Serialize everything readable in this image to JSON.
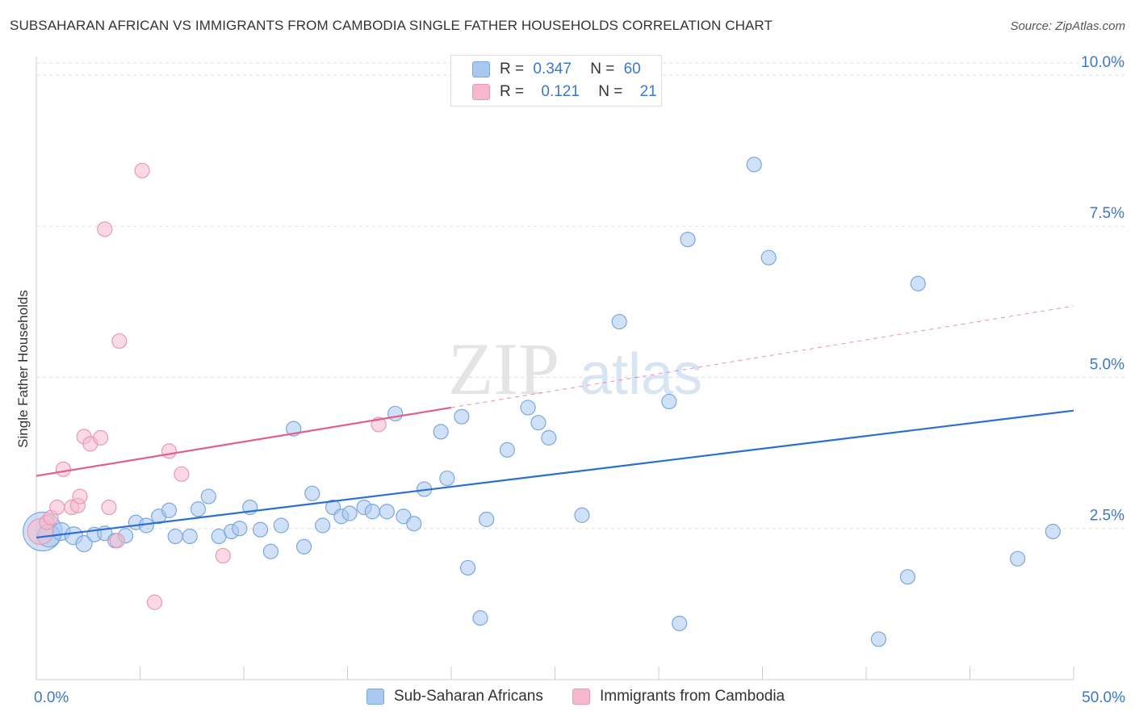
{
  "title": "SUBSAHARAN AFRICAN VS IMMIGRANTS FROM CAMBODIA SINGLE FATHER HOUSEHOLDS CORRELATION CHART",
  "source": "Source: ZipAtlas.com",
  "watermark": {
    "zip": "ZIP",
    "atlas": "atlas"
  },
  "legend": {
    "rows": [
      {
        "r_label": "R =",
        "r_value": "0.347",
        "n_label": "N =",
        "n_value": "60",
        "color": "#a9c8f0"
      },
      {
        "r_label": "R =",
        "r_value": "0.121",
        "n_label": "N =",
        "n_value": "21",
        "color": "#f6b9cc"
      }
    ]
  },
  "bottom_legend": [
    {
      "label": "Sub-Saharan Africans",
      "color": "#a9c8f0"
    },
    {
      "label": "Immigrants from Cambodia",
      "color": "#f6b9cc"
    }
  ],
  "chart_data": {
    "type": "scatter",
    "title": "SUBSAHARAN AFRICAN VS IMMIGRANTS FROM CAMBODIA SINGLE FATHER HOUSEHOLDS CORRELATION CHART",
    "xlabel": "",
    "ylabel": "Single Father Households",
    "xlim": [
      0,
      50
    ],
    "ylim": [
      0,
      10.2
    ],
    "x_tick_labels": [
      {
        "value": 0,
        "label": "0.0%"
      },
      {
        "value": 50,
        "label": "50.0%"
      }
    ],
    "y_ticks": [
      {
        "value": 2.5,
        "label": "2.5%"
      },
      {
        "value": 5.0,
        "label": "5.0%"
      },
      {
        "value": 7.5,
        "label": "7.5%"
      },
      {
        "value": 10.0,
        "label": "10.0%"
      }
    ],
    "series": [
      {
        "name": "Sub-Saharan Africans",
        "color": "#a9c8f0",
        "stroke": "#7aa8dc",
        "trend": {
          "x": [
            0,
            50
          ],
          "y": [
            2.35,
            4.45
          ],
          "color": "#2a6fd0"
        },
        "points": [
          [
            0.3,
            2.45,
            24
          ],
          [
            0.6,
            2.38,
            14
          ],
          [
            1.2,
            2.45,
            11
          ],
          [
            1.8,
            2.38,
            11
          ],
          [
            2.3,
            2.25,
            10
          ],
          [
            2.8,
            2.4,
            9
          ],
          [
            3.3,
            2.42,
            9
          ],
          [
            3.8,
            2.3,
            9
          ],
          [
            4.3,
            2.38,
            9
          ],
          [
            4.8,
            2.6,
            9
          ],
          [
            5.3,
            2.55,
            9
          ],
          [
            5.9,
            2.7,
            9
          ],
          [
            6.4,
            2.8,
            9
          ],
          [
            6.7,
            2.37,
            9
          ],
          [
            7.4,
            2.37,
            9
          ],
          [
            7.8,
            2.82,
            9
          ],
          [
            8.3,
            3.03,
            9
          ],
          [
            8.8,
            2.37,
            9
          ],
          [
            9.4,
            2.45,
            9
          ],
          [
            9.8,
            2.5,
            9
          ],
          [
            10.3,
            2.85,
            9
          ],
          [
            10.8,
            2.48,
            9
          ],
          [
            11.3,
            2.12,
            9
          ],
          [
            11.8,
            2.55,
            9
          ],
          [
            12.4,
            4.15,
            9
          ],
          [
            12.9,
            2.2,
            9
          ],
          [
            13.3,
            3.08,
            9
          ],
          [
            13.8,
            2.55,
            9
          ],
          [
            14.3,
            2.85,
            9
          ],
          [
            14.7,
            2.7,
            9
          ],
          [
            15.1,
            2.75,
            9
          ],
          [
            15.8,
            2.85,
            9
          ],
          [
            16.2,
            2.78,
            9
          ],
          [
            16.9,
            2.78,
            9
          ],
          [
            17.3,
            4.4,
            9
          ],
          [
            17.7,
            2.7,
            9
          ],
          [
            18.2,
            2.58,
            9
          ],
          [
            18.7,
            3.15,
            9
          ],
          [
            19.5,
            4.1,
            9
          ],
          [
            19.8,
            3.33,
            9
          ],
          [
            20.5,
            4.35,
            9
          ],
          [
            20.8,
            1.85,
            9
          ],
          [
            21.4,
            1.02,
            9
          ],
          [
            21.7,
            2.65,
            9
          ],
          [
            22.7,
            3.8,
            9
          ],
          [
            23.7,
            4.5,
            9
          ],
          [
            24.2,
            4.25,
            9
          ],
          [
            24.7,
            4.0,
            9
          ],
          [
            26.3,
            2.72,
            9
          ],
          [
            28.1,
            5.92,
            9
          ],
          [
            30.5,
            4.6,
            9
          ],
          [
            31.0,
            0.93,
            9
          ],
          [
            31.4,
            7.28,
            9
          ],
          [
            34.6,
            8.52,
            9
          ],
          [
            35.3,
            6.98,
            9
          ],
          [
            40.6,
            0.67,
            9
          ],
          [
            42.0,
            1.7,
            9
          ],
          [
            42.5,
            6.55,
            9
          ],
          [
            47.3,
            2.0,
            9
          ],
          [
            49.0,
            2.45,
            9
          ]
        ]
      },
      {
        "name": "Immigrants from Cambodia",
        "color": "#f6b9cc",
        "stroke": "#e79ab4",
        "trend": {
          "x": [
            0,
            20
          ],
          "y": [
            3.37,
            4.5
          ],
          "dashed_to": [
            50,
            6.18
          ],
          "color": "#e0608a"
        },
        "points": [
          [
            0.2,
            2.45,
            16
          ],
          [
            0.5,
            2.6,
            9
          ],
          [
            0.7,
            2.68,
            9
          ],
          [
            1.0,
            2.85,
            9
          ],
          [
            1.3,
            3.48,
            9
          ],
          [
            1.7,
            2.85,
            9
          ],
          [
            2.0,
            2.88,
            9
          ],
          [
            2.1,
            3.03,
            9
          ],
          [
            2.3,
            4.02,
            9
          ],
          [
            2.6,
            3.9,
            9
          ],
          [
            3.1,
            4.0,
            9
          ],
          [
            3.3,
            7.45,
            9
          ],
          [
            3.5,
            2.85,
            9
          ],
          [
            3.9,
            2.3,
            9
          ],
          [
            4.0,
            5.6,
            9
          ],
          [
            5.1,
            8.42,
            9
          ],
          [
            5.7,
            1.28,
            9
          ],
          [
            6.4,
            3.78,
            9
          ],
          [
            7.0,
            3.4,
            9
          ],
          [
            9.0,
            2.05,
            9
          ],
          [
            16.5,
            4.22,
            9
          ]
        ]
      }
    ]
  }
}
